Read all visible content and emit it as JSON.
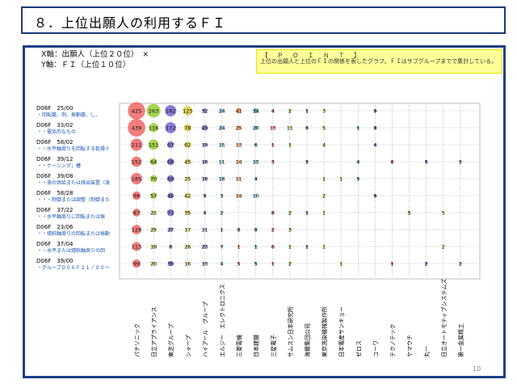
{
  "title": "８．上位出願人の利用するＦＩ",
  "notes": {
    "x_axis": "X軸：出願人（上位２０位）　×",
    "y_axis": "Y軸：ＦＩ（上位１０位）"
  },
  "point": {
    "title": "【　Ｐ　Ｏ　Ｉ　Ｎ　Ｔ　】",
    "body": "上位の出願人と上位のＦＩの関係を表したグラフ。ＦＩはサブグループまでで集計している。"
  },
  "page_number": "10",
  "chart_data": {
    "type": "bubble",
    "x_categories": [
      "パナソニック",
      "日立アプライアンス",
      "東芝グループ",
      "シャープ",
      "ハイアール　グループ",
      "エルジー　エレクトロニクス",
      "三菱電機",
      "日本建鐵",
      "三星電子",
      "サムスン日本研究所",
      "海爾集団公司",
      "東京洗染機械製作所",
      "日本電産サンキョー",
      "ゼロス",
      "コーワ",
      "テクノテック",
      "ヤマウチ",
      "丸一",
      "日立オートモティブシステムズ",
      "第一金属精工"
    ],
    "y_categories": [
      {
        "code": "D06F　25/00",
        "desc": "・回転籠、例．振動籠、し．"
      },
      {
        "code": "D06F　33/02",
        "desc": "・・電気的なもの"
      },
      {
        "code": "D06F　58/02",
        "desc": "・・水平軸周りを回転する乾燥ド"
      },
      {
        "code": "D06F　39/12",
        "desc": "・・ケーシング；槽"
      },
      {
        "code": "D06F　39/08",
        "desc": "・・液の供給または排出装置（液"
      },
      {
        "code": "D06F　58/28",
        "desc": "・・・制御または調整（制御また"
      },
      {
        "code": "D06F　37/22",
        "desc": "・・水平軸周りに回転または振"
      },
      {
        "code": "D06F　23/06",
        "desc": "・・傾斜軸周りの回転または振動"
      },
      {
        "code": "D06F　37/04",
        "desc": "・・水平または傾斜軸周りの回"
      },
      {
        "code": "D06F　39/00",
        "desc": "・グループＤ０６Ｆ２１／００～"
      }
    ],
    "matrix": [
      [
        425,
        263,
        182,
        125,
        32,
        24,
        41,
        34,
        4,
        2,
        1,
        3,
        null,
        null,
        9,
        null,
        null,
        null,
        null,
        null
      ],
      [
        439,
        116,
        172,
        78,
        49,
        24,
        25,
        20,
        13,
        11,
        6,
        5,
        null,
        1,
        8,
        null,
        null,
        null,
        null,
        null
      ],
      [
        211,
        151,
        67,
        62,
        19,
        15,
        13,
        6,
        1,
        1,
        null,
        4,
        null,
        null,
        4,
        null,
        null,
        null,
        null,
        null
      ],
      [
        152,
        64,
        68,
        45,
        18,
        11,
        14,
        13,
        3,
        null,
        3,
        null,
        null,
        4,
        null,
        6,
        null,
        5,
        null,
        5
      ],
      [
        185,
        70,
        69,
        25,
        18,
        18,
        11,
        4,
        null,
        null,
        null,
        1,
        1,
        5,
        null,
        null,
        null,
        null,
        null,
        null
      ],
      [
        98,
        57,
        48,
        42,
        9,
        3,
        14,
        10,
        null,
        null,
        null,
        2,
        null,
        null,
        9,
        null,
        null,
        null,
        null,
        null
      ],
      [
        87,
        22,
        71,
        35,
        4,
        2,
        null,
        null,
        8,
        2,
        1,
        1,
        null,
        null,
        null,
        null,
        5,
        null,
        5,
        null
      ],
      [
        126,
        25,
        27,
        17,
        11,
        1,
        8,
        8,
        2,
        3,
        null,
        null,
        null,
        null,
        null,
        null,
        null,
        null,
        null,
        null
      ],
      [
        113,
        19,
        8,
        26,
        23,
        7,
        1,
        1,
        6,
        1,
        1,
        1,
        null,
        null,
        null,
        null,
        null,
        null,
        2,
        null
      ],
      [
        99,
        20,
        39,
        16,
        13,
        4,
        5,
        5,
        1,
        2,
        null,
        null,
        1,
        null,
        null,
        1,
        null,
        2,
        null,
        2
      ]
    ],
    "column_colors": [
      "#ee6666",
      "#99cc33",
      "#7766cc",
      "#ddcc44",
      "#8877cc",
      "#66bbdd",
      "#ee8844",
      "#33aaaa",
      "#ee6666",
      "#99cc33",
      "#7766cc",
      "#ddcc44",
      "#dddd33",
      "#33aaaa",
      "#aa33cc",
      "#ee5555",
      "#88cc33",
      "#6655bb",
      "#dddd66",
      "#66aacc"
    ]
  }
}
